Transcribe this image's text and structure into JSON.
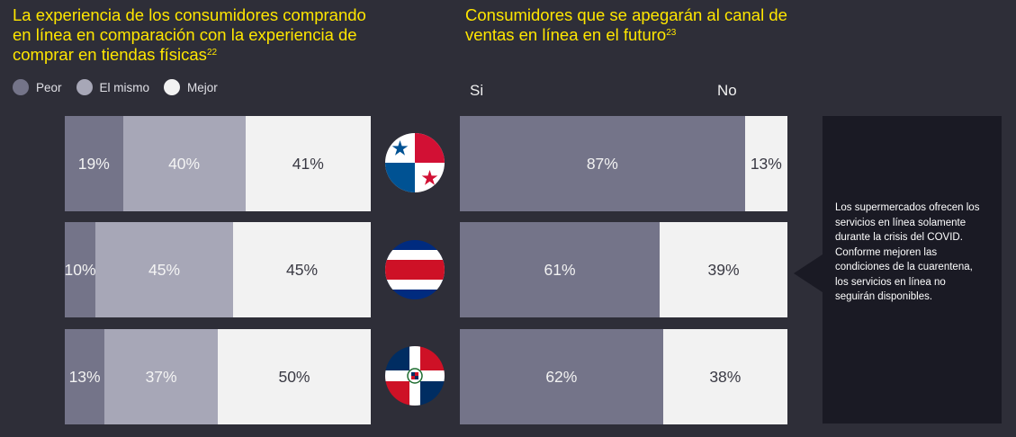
{
  "left_title": {
    "text": "La experiencia de los consumidores comprando en línea en comparación con la experiencia de comprar en tiendas físicas",
    "sup": "22"
  },
  "right_title": {
    "text": "Consumidores que se apegarán al canal de ventas en línea en el futuro",
    "sup": "23"
  },
  "colors": {
    "peor": "#747489",
    "mismo": "#a7a7b7",
    "mejor": "#f2f2f2",
    "si": "#747489",
    "no": "#f2f2f2",
    "title": "#ffe600"
  },
  "chart_data": [
    {
      "type": "bar",
      "orientation": "horizontal-stacked",
      "title": "La experiencia de los consumidores comprando en línea en comparación con la experiencia de comprar en tiendas físicas",
      "legend": [
        "Peor",
        "El mismo",
        "Mejor"
      ],
      "categories": [
        "Panamá",
        "Costa Rica",
        "República Dominicana"
      ],
      "series": [
        {
          "name": "Peor",
          "values": [
            19,
            10,
            13
          ],
          "labels": [
            "19%",
            "10%",
            "13%"
          ]
        },
        {
          "name": "El mismo",
          "values": [
            40,
            45,
            37
          ],
          "labels": [
            "40%",
            "45%",
            "37%"
          ]
        },
        {
          "name": "Mejor",
          "values": [
            41,
            45,
            50
          ],
          "labels": [
            "41%",
            "45%",
            "50%"
          ]
        }
      ]
    },
    {
      "type": "bar",
      "orientation": "horizontal-stacked",
      "title": "Consumidores que se apegarán al canal de ventas en línea en el futuro",
      "legend": [
        "Si",
        "No"
      ],
      "categories": [
        "Panamá",
        "Costa Rica",
        "República Dominicana"
      ],
      "series": [
        {
          "name": "Si",
          "values": [
            87,
            61,
            62
          ],
          "labels": [
            "87%",
            "61%",
            "62%"
          ]
        },
        {
          "name": "No",
          "values": [
            13,
            39,
            38
          ],
          "labels": [
            "13%",
            "39%",
            "38%"
          ]
        }
      ]
    }
  ],
  "note": {
    "p1": "Los supermercados ofrecen los servicios en línea solamente durante la crisis del COVID.",
    "p2": "Conforme mejoren las condiciones de la cuarentena, los servicios en línea no seguirán disponibles."
  }
}
